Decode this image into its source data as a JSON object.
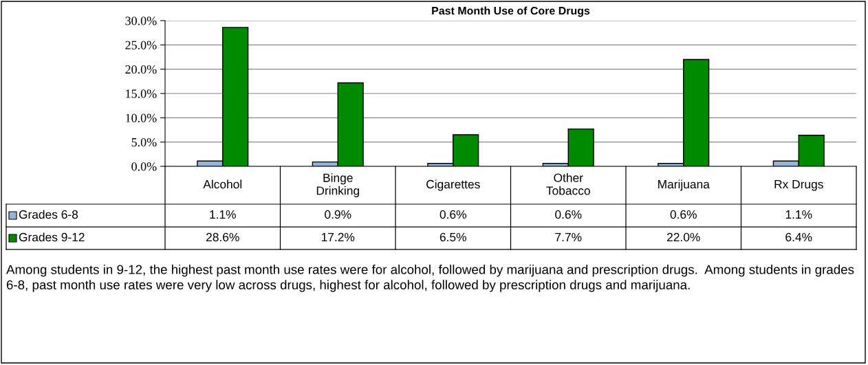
{
  "chart_data": {
    "type": "bar",
    "title": "Past Month Use of Core Drugs",
    "categories": [
      "Alcohol",
      "Binge\nDrinking",
      "Cigarettes",
      "Other\nTobacco",
      "Marijuana",
      "Rx Drugs"
    ],
    "series": [
      {
        "name": "Grades 6-8",
        "color": "#95b3d7",
        "values": [
          1.1,
          0.9,
          0.6,
          0.6,
          0.6,
          1.1
        ],
        "value_labels": [
          "1.1%",
          "0.9%",
          "0.6%",
          "0.6%",
          "0.6%",
          "1.1%"
        ]
      },
      {
        "name": "Grades 9-12",
        "color": "#008a00",
        "values": [
          28.6,
          17.2,
          6.5,
          7.7,
          22.0,
          6.4
        ],
        "value_labels": [
          "28.6%",
          "17.2%",
          "6.5%",
          "7.7%",
          "22.0%",
          "6.4%"
        ]
      }
    ],
    "ylim": [
      0,
      30
    ],
    "yticks": [
      {
        "value": 0,
        "label": "0.0%"
      },
      {
        "value": 5,
        "label": "5.0%"
      },
      {
        "value": 10,
        "label": "10.0%"
      },
      {
        "value": 15,
        "label": "15.0%"
      },
      {
        "value": 20,
        "label": "20.0%"
      },
      {
        "value": 25,
        "label": "25.0%"
      },
      {
        "value": 30,
        "label": "30.0%"
      }
    ],
    "grid": "y",
    "legend": "bottom left",
    "annotations": [
      "Among students in 9-12, the highest past month use rates were for alcohol, followed by marijuana and prescription drugs.  Among students in grades 6-8, past month use rates were very low across drugs, highest for alcohol, followed by prescription drugs and marijuana."
    ]
  }
}
